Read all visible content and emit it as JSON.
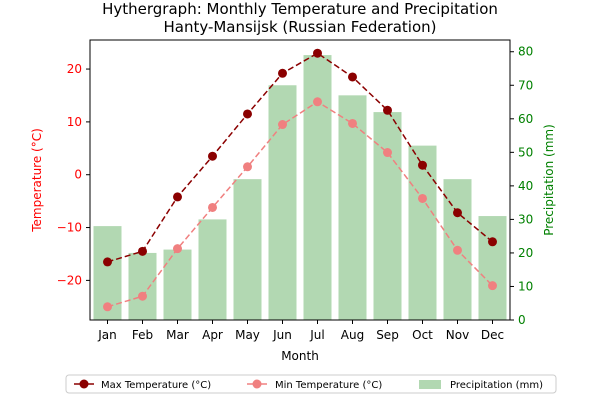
{
  "chart_data": {
    "type": "bar+line",
    "title_line1": "Hythergraph: Monthly Temperature and Precipitation",
    "title_line2": "Hanty-Mansijsk (Russian Federation)",
    "xlabel": "Month",
    "ylabel_left": "Temperature (°C)",
    "ylabel_right": "Precipitation (mm)",
    "categories": [
      "Jan",
      "Feb",
      "Mar",
      "Apr",
      "May",
      "Jun",
      "Jul",
      "Aug",
      "Sep",
      "Oct",
      "Nov",
      "Dec"
    ],
    "y_left_ticks": [
      -20,
      -10,
      0,
      10,
      20
    ],
    "y_left_tick_labels": [
      "−20",
      "−10",
      "0",
      "10",
      "20"
    ],
    "y_right_ticks": [
      0,
      10,
      20,
      30,
      40,
      50,
      60,
      70,
      80
    ],
    "y_right_tick_labels": [
      "0",
      "10",
      "20",
      "30",
      "40",
      "50",
      "60",
      "70",
      "80"
    ],
    "ylim_left": [
      -27.5,
      25.5
    ],
    "ylim_right": [
      0,
      83.5
    ],
    "series": [
      {
        "name": "Max Temperature (°C)",
        "kind": "line",
        "axis": "left",
        "style": "dashed",
        "color": "#8b0000",
        "values": [
          -16.5,
          -14.5,
          -4.2,
          3.5,
          11.5,
          19.2,
          23.0,
          18.5,
          12.2,
          1.8,
          -7.2,
          -12.7
        ]
      },
      {
        "name": "Min Temperature (°C)",
        "kind": "line",
        "axis": "left",
        "style": "dashed",
        "color": "#f08080",
        "values": [
          -25.0,
          -23.0,
          -14.0,
          -6.2,
          1.5,
          9.5,
          13.8,
          9.7,
          4.2,
          -4.5,
          -14.3,
          -21.0
        ]
      },
      {
        "name": "Precipitation (mm)",
        "kind": "bar",
        "axis": "right",
        "color": "#b2d8b2",
        "values": [
          28,
          20,
          21,
          30,
          42,
          70,
          79,
          67,
          62,
          52,
          42,
          31
        ]
      }
    ],
    "left_axis_color": "#ff0000",
    "right_axis_color": "#008000",
    "legend_position": "bottom-center",
    "grid": false
  }
}
